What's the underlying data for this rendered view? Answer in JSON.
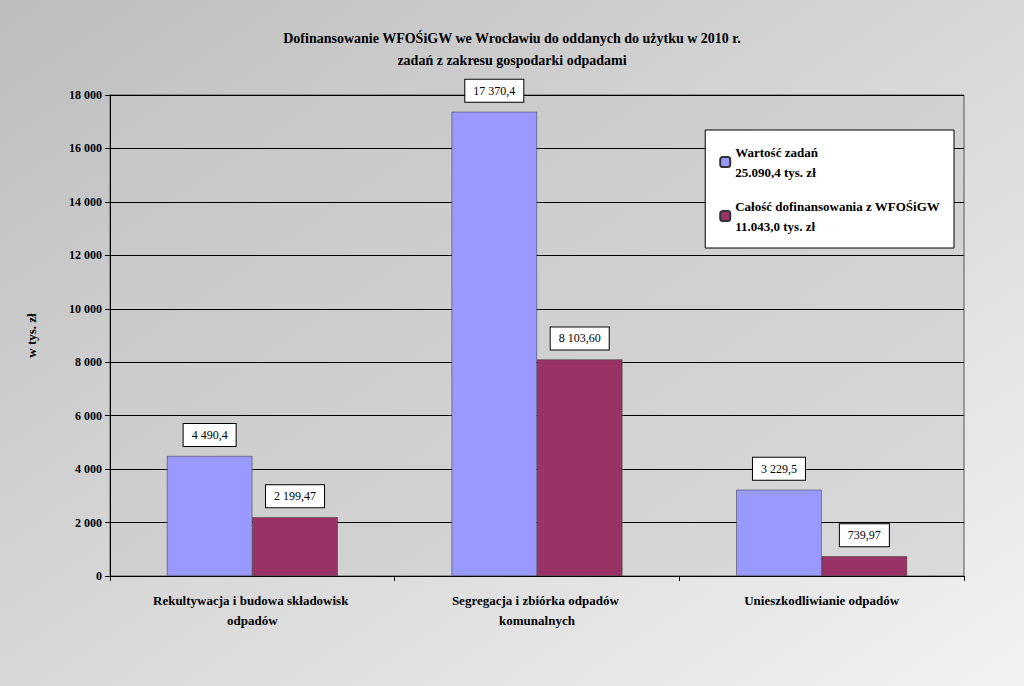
{
  "chart_data": {
    "type": "bar",
    "title": "Dofinansowanie WFOŚiGW we Wrocławiu do oddanych do użytku w 2010 r.\nzadań z zakresu gospodarki odpadami",
    "y_label": "w tys. zł",
    "categories": [
      "Rekultywacja i budowa składowisk odpadów",
      "Segregacja i zbiórka odpadów komunalnych",
      "Unieszkodliwianie odpadów"
    ],
    "series": [
      {
        "name": "Wartość zadań\n25.090,4 tys. zł",
        "color": "#9999ff",
        "values": [
          4490.4,
          17370.4,
          3229.5
        ],
        "value_labels": [
          "4 490,4",
          "17 370,4",
          "3 229,5"
        ]
      },
      {
        "name": "Całość dofinansowania z WFOŚiGW\n11.043,0 tys. zł",
        "color": "#993366",
        "values": [
          2199.47,
          8103.6,
          739.97
        ],
        "value_labels": [
          "2 199,47",
          "8 103,60",
          "739,97"
        ]
      }
    ],
    "ylim": [
      0,
      18000
    ],
    "yticks": [
      0,
      {
        "value": 2000,
        "label": "2 000"
      },
      {
        "value": 4000,
        "label": "4 000"
      },
      {
        "value": 6000,
        "label": "6 000"
      },
      {
        "value": 8000,
        "label": "8 000"
      },
      {
        "value": 10000,
        "label": "10 000"
      },
      {
        "value": 12000,
        "label": "12 000"
      },
      {
        "value": 14000,
        "label": "14 000"
      },
      {
        "value": 16000,
        "label": "16 000"
      },
      {
        "value": 18000,
        "label": "18 000"
      }
    ],
    "grid": true,
    "legend": "top-right",
    "data_labels": true
  }
}
